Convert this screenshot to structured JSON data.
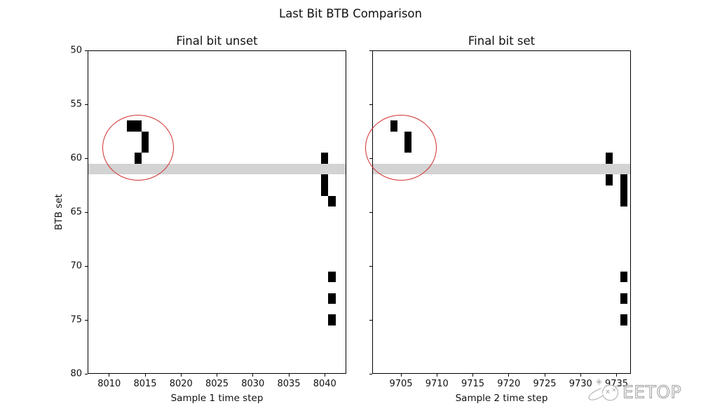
{
  "figure_title": "Last Bit BTB Comparison",
  "watermark": {
    "text": "EETOP",
    "logo_icon": "globe-sketch-icon"
  },
  "chart_data": {
    "type": "heatmap",
    "title": "Last Bit BTB Comparison",
    "ylabel": "BTB set",
    "ylim": [
      50,
      80
    ],
    "y_axis_inverted": true,
    "yticks": [
      50,
      55,
      60,
      65,
      70,
      75,
      80
    ],
    "grid": false,
    "legend": "none",
    "cell_size": [
      1,
      1
    ],
    "marker_color": "#000000",
    "band": {
      "y0": 60.5,
      "y1": 61.5,
      "color": "#d3d3d3"
    },
    "annotation_color": "#d22f2f",
    "panels": [
      {
        "title": "Final bit unset",
        "xlabel": "Sample 1 time step",
        "xlim": [
          8007,
          8043
        ],
        "xticks": [
          8010,
          8015,
          8020,
          8025,
          8030,
          8035,
          8040
        ],
        "show_ytick_labels": true,
        "points": [
          [
            8013,
            57
          ],
          [
            8014,
            57
          ],
          [
            8015,
            58
          ],
          [
            8015,
            59
          ],
          [
            8014,
            60
          ],
          [
            8040,
            60
          ],
          [
            8040,
            62
          ],
          [
            8040,
            63
          ],
          [
            8041,
            64
          ],
          [
            8041,
            71
          ],
          [
            8041,
            73
          ],
          [
            8041,
            75
          ]
        ],
        "ellipse": {
          "cx": 8014,
          "cy": 59,
          "rx": 5,
          "ry": 3.05
        }
      },
      {
        "title": "Final bit set",
        "xlabel": "Sample 2 time step",
        "xlim": [
          9701,
          9737
        ],
        "xticks": [
          9705,
          9710,
          9715,
          9720,
          9725,
          9730,
          9735
        ],
        "show_ytick_labels": false,
        "points": [
          [
            9704,
            57
          ],
          [
            9706,
            58
          ],
          [
            9706,
            59
          ],
          [
            9734,
            60
          ],
          [
            9734,
            62
          ],
          [
            9736,
            62
          ],
          [
            9736,
            63
          ],
          [
            9736,
            64
          ],
          [
            9736,
            71
          ],
          [
            9736,
            73
          ],
          [
            9736,
            75
          ]
        ],
        "ellipse": {
          "cx": 9705,
          "cy": 59,
          "rx": 5,
          "ry": 3.05
        }
      }
    ]
  }
}
